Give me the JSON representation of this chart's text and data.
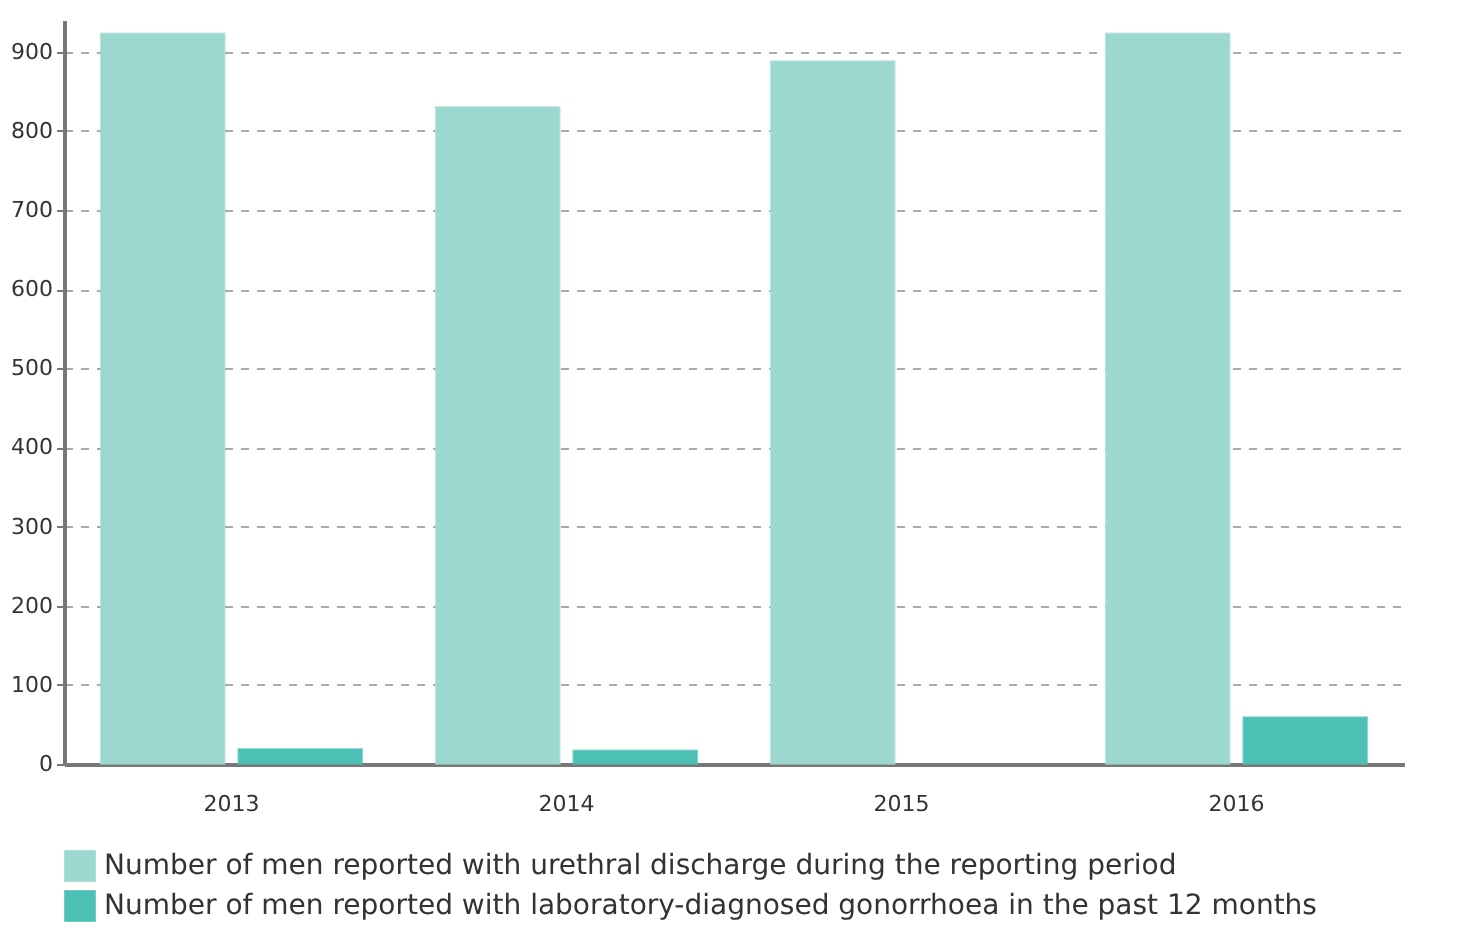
{
  "chart_data": {
    "type": "bar",
    "categories": [
      "2013",
      "2014",
      "2015",
      "2016"
    ],
    "series": [
      {
        "name": "Number of men reported with urethral discharge during the reporting period",
        "color": "#9dd8d0",
        "values": [
          923,
          830,
          888,
          923
        ]
      },
      {
        "name": "Number of men reported with laboratory-diagnosed gonorrhoea in the past 12 months",
        "color": "#4cc0b5",
        "values": [
          19,
          17,
          null,
          59
        ]
      }
    ],
    "ylim": [
      0,
      940
    ],
    "yticks": [
      0,
      100,
      200,
      300,
      400,
      500,
      600,
      700,
      800,
      900
    ],
    "grid": "y",
    "legend": "bottom"
  }
}
